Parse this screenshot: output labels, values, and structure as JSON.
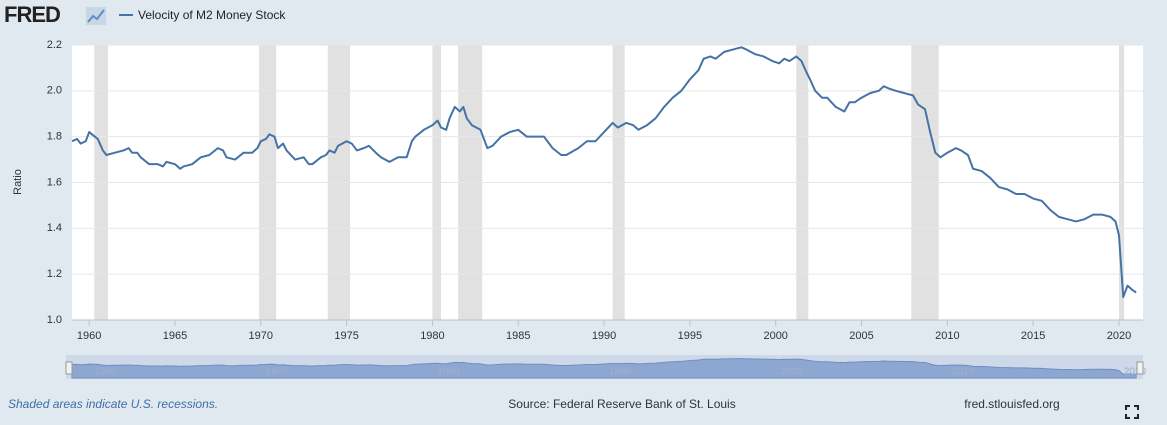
{
  "brand": "FRED",
  "chart_data": {
    "type": "line",
    "title": "Velocity of M2 Money Stock",
    "ylabel": "Ratio",
    "footer_note": "Shaded areas indicate U.S. recessions.",
    "source": "Source: Federal Reserve Bank of St. Louis",
    "site": "fred.stlouisfed.org",
    "xlim": [
      1959,
      2021.4
    ],
    "ylim": [
      1,
      2.2
    ],
    "xticks": [
      1960,
      1965,
      1970,
      1975,
      1980,
      1985,
      1990,
      1995,
      2000,
      2005,
      2010,
      2015,
      2020
    ],
    "yticks": [
      {
        "value": 1,
        "label": "1.0"
      },
      1.2,
      1.4,
      1.6,
      1.8,
      {
        "value": 2,
        "label": "2.0"
      },
      2.2
    ],
    "grid": true,
    "recessions": [
      [
        1960.3,
        1961.1
      ],
      [
        1969.9,
        1970.9
      ],
      [
        1973.9,
        1975.2
      ],
      [
        1980.0,
        1980.5
      ],
      [
        1981.5,
        1982.9
      ],
      [
        1990.5,
        1991.2
      ],
      [
        2001.2,
        2001.9
      ],
      [
        2007.9,
        2009.5
      ],
      [
        2020.0,
        2020.3
      ]
    ],
    "recession_color": "#e1e1e1",
    "x": [
      1959.0,
      1959.3,
      1959.5,
      1959.8,
      1960.0,
      1960.5,
      1960.8,
      1961.0,
      1961.5,
      1962.0,
      1962.3,
      1962.5,
      1962.8,
      1963.0,
      1963.5,
      1964.0,
      1964.3,
      1964.5,
      1965.0,
      1965.3,
      1965.5,
      1966.0,
      1966.5,
      1967.0,
      1967.5,
      1967.8,
      1968.0,
      1968.5,
      1969.0,
      1969.5,
      1969.8,
      1970.0,
      1970.3,
      1970.5,
      1970.8,
      1971.0,
      1971.3,
      1971.5,
      1972.0,
      1972.5,
      1972.8,
      1973.0,
      1973.5,
      1973.8,
      1974.0,
      1974.3,
      1974.5,
      1975.0,
      1975.3,
      1975.6,
      1976.0,
      1976.3,
      1976.7,
      1977.0,
      1977.5,
      1978.0,
      1978.5,
      1978.8,
      1979.0,
      1979.5,
      1980.0,
      1980.3,
      1980.5,
      1980.8,
      1981.0,
      1981.3,
      1981.6,
      1981.8,
      1982.0,
      1982.3,
      1982.8,
      1983.2,
      1983.5,
      1984.0,
      1984.5,
      1985.0,
      1985.5,
      1986.0,
      1986.5,
      1987.0,
      1987.5,
      1987.8,
      1988.5,
      1989.0,
      1989.5,
      1990.0,
      1990.5,
      1990.8,
      1991.3,
      1991.7,
      1992.0,
      1992.5,
      1993.0,
      1993.5,
      1994.0,
      1994.5,
      1995.0,
      1995.5,
      1995.8,
      1996.2,
      1996.5,
      1997.0,
      1997.5,
      1998.0,
      1998.3,
      1998.8,
      1999.3,
      1999.8,
      2000.2,
      2000.5,
      2000.8,
      2001.2,
      2001.5,
      2001.8,
      2002.0,
      2002.3,
      2002.7,
      2003.0,
      2003.5,
      2004.0,
      2004.3,
      2004.6,
      2005.0,
      2005.5,
      2006.0,
      2006.3,
      2006.6,
      2007.0,
      2007.5,
      2008.0,
      2008.3,
      2008.7,
      2009.0,
      2009.3,
      2009.6,
      2010.0,
      2010.5,
      2010.8,
      2011.2,
      2011.5,
      2012.0,
      2012.5,
      2013.0,
      2013.5,
      2014.0,
      2014.5,
      2015.0,
      2015.5,
      2016.0,
      2016.5,
      2017.0,
      2017.5,
      2018.0,
      2018.5,
      2019.0,
      2019.5,
      2019.8,
      2020.0,
      2020.25,
      2020.5,
      2020.8,
      2021.0
    ],
    "series": [
      {
        "name": "Velocity of M2 Money Stock",
        "color": "#4572a7",
        "values": [
          1.78,
          1.79,
          1.77,
          1.78,
          1.82,
          1.79,
          1.74,
          1.72,
          1.73,
          1.74,
          1.75,
          1.73,
          1.73,
          1.71,
          1.68,
          1.68,
          1.67,
          1.69,
          1.68,
          1.66,
          1.67,
          1.68,
          1.71,
          1.72,
          1.75,
          1.74,
          1.71,
          1.7,
          1.73,
          1.73,
          1.75,
          1.78,
          1.79,
          1.81,
          1.8,
          1.75,
          1.77,
          1.74,
          1.7,
          1.71,
          1.68,
          1.68,
          1.71,
          1.72,
          1.74,
          1.73,
          1.76,
          1.78,
          1.77,
          1.74,
          1.75,
          1.76,
          1.73,
          1.71,
          1.69,
          1.71,
          1.71,
          1.78,
          1.8,
          1.83,
          1.85,
          1.87,
          1.84,
          1.83,
          1.88,
          1.93,
          1.91,
          1.93,
          1.88,
          1.85,
          1.83,
          1.75,
          1.76,
          1.8,
          1.82,
          1.83,
          1.8,
          1.8,
          1.8,
          1.75,
          1.72,
          1.72,
          1.75,
          1.78,
          1.78,
          1.82,
          1.86,
          1.84,
          1.86,
          1.85,
          1.83,
          1.85,
          1.88,
          1.93,
          1.97,
          2.0,
          2.05,
          2.09,
          2.14,
          2.15,
          2.14,
          2.17,
          2.18,
          2.19,
          2.18,
          2.16,
          2.15,
          2.13,
          2.12,
          2.14,
          2.13,
          2.15,
          2.13,
          2.08,
          2.05,
          2.0,
          1.97,
          1.97,
          1.93,
          1.91,
          1.95,
          1.95,
          1.97,
          1.99,
          2.0,
          2.02,
          2.01,
          2.0,
          1.99,
          1.98,
          1.94,
          1.92,
          1.82,
          1.73,
          1.71,
          1.73,
          1.75,
          1.74,
          1.72,
          1.66,
          1.65,
          1.62,
          1.58,
          1.57,
          1.55,
          1.55,
          1.53,
          1.52,
          1.48,
          1.45,
          1.44,
          1.43,
          1.44,
          1.46,
          1.46,
          1.45,
          1.43,
          1.37,
          1.1,
          1.15,
          1.13,
          1.12
        ]
      }
    ]
  }
}
